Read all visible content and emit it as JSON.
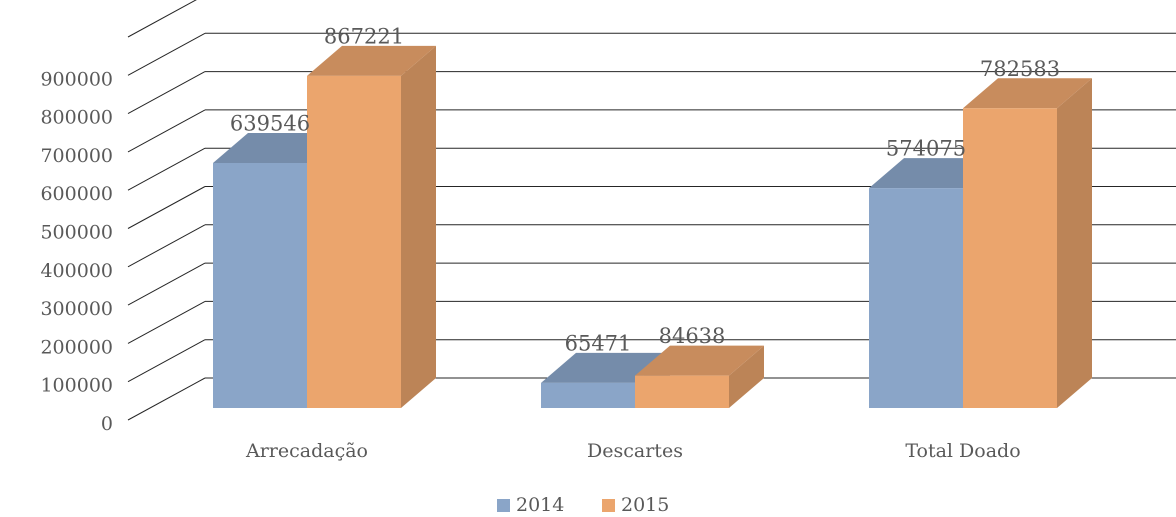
{
  "chart_data": {
    "type": "bar3d",
    "categories": [
      "Arrecadação",
      "Descartes",
      "Total Doado"
    ],
    "series": [
      {
        "name": "2014",
        "color": "#8aa5c8",
        "values": [
          639546,
          65471,
          574075
        ]
      },
      {
        "name": "2015",
        "color": "#eba56d",
        "values": [
          867221,
          84638,
          782583
        ]
      }
    ],
    "ylim": [
      0,
      1000000
    ],
    "yticks": [
      0,
      100000,
      200000,
      300000,
      400000,
      500000,
      600000,
      700000,
      800000,
      900000
    ],
    "grid": true,
    "legend": "bottom"
  }
}
